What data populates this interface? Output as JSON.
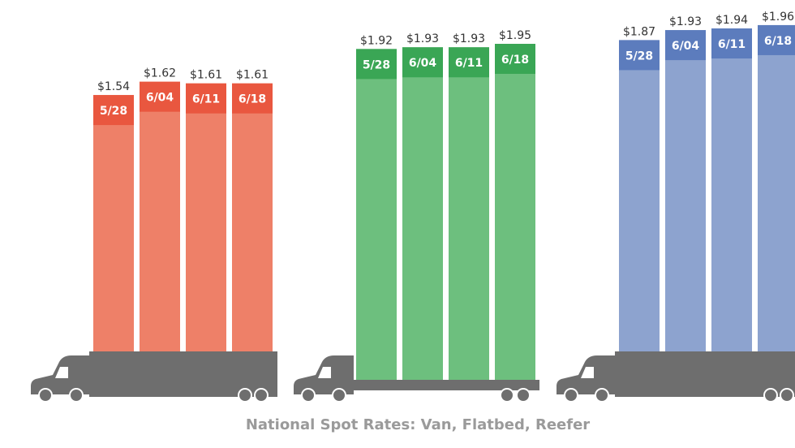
{
  "chart_data": {
    "type": "bar",
    "title": "National Spot Rates: Van, Flatbed, Reefer",
    "groups": [
      {
        "categories": [
          "5/28",
          "6/04",
          "6/11",
          "6/18"
        ],
        "price_labels": [
          "$1.54",
          "$1.62",
          "$1.61",
          "$1.61"
        ],
        "values": [
          1.54,
          1.62,
          1.61,
          1.61
        ],
        "colors": {
          "bar": "#ee8068",
          "cap": "#e9573f"
        }
      },
      {
        "categories": [
          "5/28",
          "6/04",
          "6/11",
          "6/18"
        ],
        "price_labels": [
          "$1.92",
          "$1.93",
          "$1.93",
          "$1.95"
        ],
        "values": [
          1.92,
          1.93,
          1.93,
          1.95
        ],
        "colors": {
          "bar": "#6dbf7e",
          "cap": "#3aa655"
        }
      },
      {
        "categories": [
          "5/28",
          "6/04",
          "6/11",
          "6/18"
        ],
        "price_labels": [
          "$1.87",
          "$1.93",
          "$1.94",
          "$1.96"
        ],
        "values": [
          1.87,
          1.93,
          1.94,
          1.96
        ],
        "colors": {
          "bar": "#8da3cf",
          "cap": "#5c7cbd"
        }
      }
    ],
    "truck_color": "#6e6e6e"
  }
}
